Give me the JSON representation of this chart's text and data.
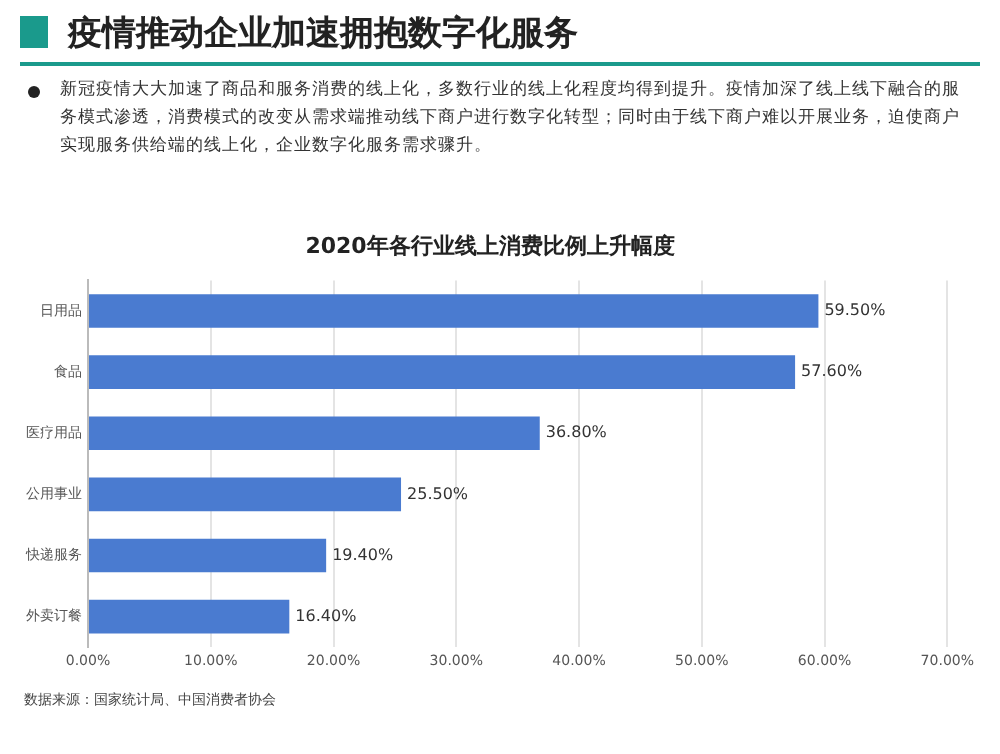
{
  "chart_data": {
    "type": "bar",
    "orientation": "horizontal",
    "title": "2020年各行业线上消费比例上升幅度",
    "annotations": [
      "疫情推动企业加速拥抱数字化服务",
      "新冠疫情大大加速了商品和服务消费的线上化，多数行业的线上化程度均得到提升。疫情加深了线上线下融合的服务模式渗透，消费模式的改变从需求端推动线下商户进行数字化转型；同时由于线下商户难以开展业务，迫使商户实现服务供给端的线上化，企业数字化服务需求骤升。",
      "数据来源：国家统计局、中国消费者协会"
    ],
    "categories": [
      "日用品",
      "食品",
      "医疗用品",
      "公用事业",
      "快递服务",
      "外卖订餐"
    ],
    "values": [
      59.5,
      57.6,
      36.8,
      25.5,
      19.4,
      16.4
    ],
    "value_labels": [
      "59.50%",
      "57.60%",
      "36.80%",
      "25.50%",
      "19.40%",
      "16.40%"
    ],
    "color": "#4a7bd0",
    "xlim": [
      0,
      70
    ],
    "xticks": [
      {
        "value": 0,
        "label": "0.00%"
      },
      {
        "value": 10,
        "label": "10.00%"
      },
      {
        "value": 20,
        "label": "20.00%"
      },
      {
        "value": 30,
        "label": "30.00%"
      },
      {
        "value": 40,
        "label": "40.00%"
      },
      {
        "value": 50,
        "label": "50.00%"
      },
      {
        "value": 60,
        "label": "60.00%"
      },
      {
        "value": 70,
        "label": "70.00%"
      }
    ],
    "grid": "x",
    "legend": false
  }
}
